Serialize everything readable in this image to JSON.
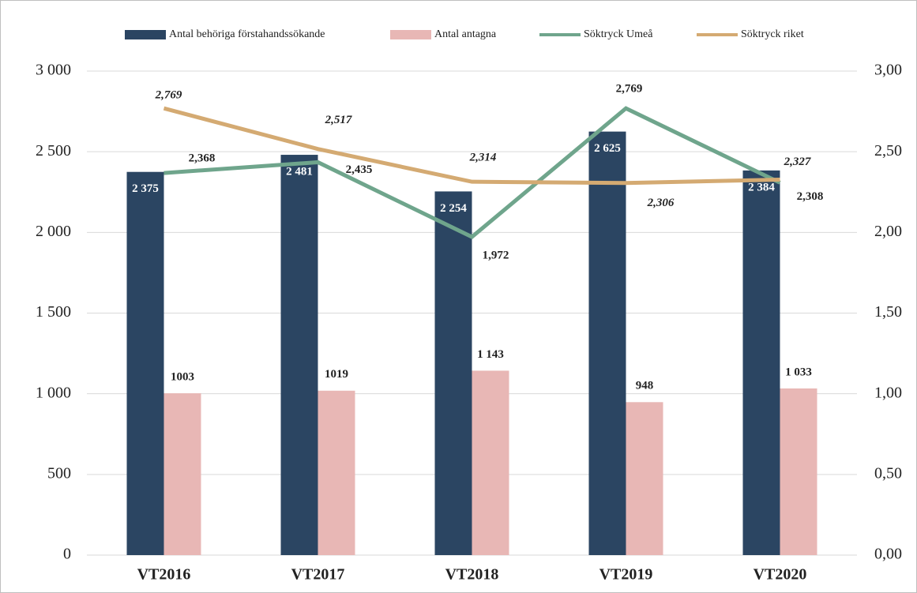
{
  "chart_data": {
    "type": "bar",
    "categories": [
      "VT2016",
      "VT2017",
      "VT2018",
      "VT2019",
      "VT2020"
    ],
    "series": [
      {
        "name": "Antal behöriga förstahandssökande",
        "type": "bar",
        "color": "#2b4562",
        "values": [
          2375,
          2481,
          2254,
          2625,
          2384
        ],
        "value_labels": [
          "2 375",
          "2 481",
          "2 254",
          "2 625",
          "2 384"
        ]
      },
      {
        "name": "Antal antagna",
        "type": "bar",
        "color": "#e8b7b5",
        "values": [
          1003,
          1019,
          1143,
          948,
          1033
        ],
        "value_labels": [
          "1003",
          "1019",
          "1 143",
          "948",
          "1 033"
        ]
      },
      {
        "name": "Söktryck Umeå",
        "type": "line",
        "axis": "y2",
        "color": "#6fa58c",
        "values": [
          2.368,
          2.435,
          1.972,
          2.769,
          2.308
        ],
        "value_labels": [
          "2,368",
          "2,435",
          "1,972",
          "2,769",
          "2,308"
        ]
      },
      {
        "name": "Söktryck riket",
        "type": "line",
        "axis": "y2",
        "color": "#d4aa72",
        "values": [
          2.769,
          2.517,
          2.314,
          2.306,
          2.327
        ],
        "value_labels": [
          "2,769",
          "2,517",
          "2,314",
          "2,306",
          "2,327"
        ]
      }
    ],
    "ylim": [
      0,
      3000
    ],
    "yticks": [
      0,
      500,
      {
        "value": 1000,
        "label": "1 000"
      },
      {
        "value": 1500,
        "label": "1 500"
      },
      {
        "value": 2000,
        "label": "2 000"
      },
      {
        "value": 2500,
        "label": "2 500"
      },
      {
        "value": 3000,
        "label": "3 000"
      }
    ],
    "y2lim": [
      0,
      3
    ],
    "y2ticks": [
      {
        "value": 0,
        "label": "0,00"
      },
      {
        "value": 0.5,
        "label": "0,50"
      },
      {
        "value": 1,
        "label": "1,00"
      },
      {
        "value": 1.5,
        "label": "1,50"
      },
      {
        "value": 2,
        "label": "2,00"
      },
      {
        "value": 2.5,
        "label": "2,50"
      },
      {
        "value": 3,
        "label": "3,00"
      }
    ],
    "grid": true,
    "legend": "top"
  }
}
